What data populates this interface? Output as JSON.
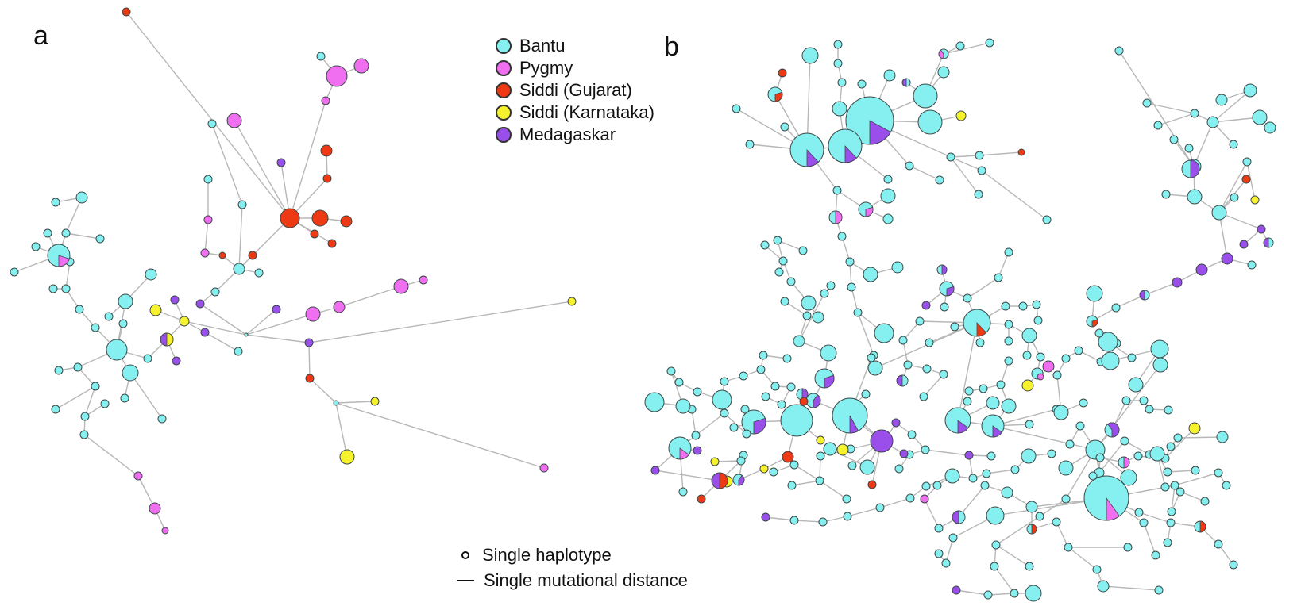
{
  "colors": {
    "bantu": "#86f0f0",
    "pygmy": "#f06ef0",
    "siddi_gujarat": "#ee3a14",
    "siddi_karnataka": "#f7f22e",
    "medagaskar": "#9a4fea",
    "edge": "#b7b7b7",
    "node_stroke": "#3c4747"
  },
  "panels": {
    "a": "a",
    "b": "b"
  },
  "legend": {
    "items": [
      {
        "label": "Bantu",
        "color": "#86f0f0"
      },
      {
        "label": "Pygmy",
        "color": "#f06ef0"
      },
      {
        "label": "Siddi (Gujarat)",
        "color": "#ee3a14"
      },
      {
        "label": "Siddi (Karnataka)",
        "color": "#f7f22e"
      },
      {
        "label": "Medagaskar",
        "color": "#9a4fea"
      }
    ]
  },
  "scale_legend": {
    "haplotype": "Single haplotype",
    "mutation": "Single mutational distance"
  }
}
